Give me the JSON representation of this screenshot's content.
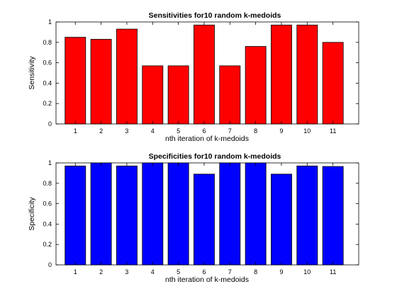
{
  "chart_data": [
    {
      "type": "bar",
      "title": "Sensitivities for10 random k-medoids",
      "xlabel": "nth iteration of k-medoids",
      "ylabel": "Sensitivity",
      "categories": [
        "1",
        "2",
        "3",
        "4",
        "5",
        "6",
        "7",
        "8",
        "9",
        "10",
        "11"
      ],
      "values": [
        0.85,
        0.83,
        0.93,
        0.57,
        0.57,
        0.97,
        0.57,
        0.76,
        0.97,
        0.97,
        0.8
      ],
      "ylim": [
        0,
        1
      ],
      "yticks": [
        "0",
        "0.2",
        "0.4",
        "0.6",
        "0.8",
        "1"
      ],
      "bar_color": "#ff0000",
      "grid": false,
      "legend": "none"
    },
    {
      "type": "bar",
      "title": "Specificities for10 random k-medoids",
      "xlabel": "nth iteration of k-medoids",
      "ylabel": "Specificity",
      "categories": [
        "1",
        "2",
        "3",
        "4",
        "5",
        "6",
        "7",
        "8",
        "9",
        "10",
        "11"
      ],
      "values": [
        0.97,
        1.0,
        0.97,
        1.0,
        1.0,
        0.89,
        1.0,
        1.0,
        0.89,
        0.97,
        0.965
      ],
      "ylim": [
        0,
        1
      ],
      "yticks": [
        "0",
        "0.2",
        "0.4",
        "0.6",
        "0.8",
        "1"
      ],
      "bar_color": "#0000ff",
      "grid": false,
      "legend": "none"
    }
  ]
}
